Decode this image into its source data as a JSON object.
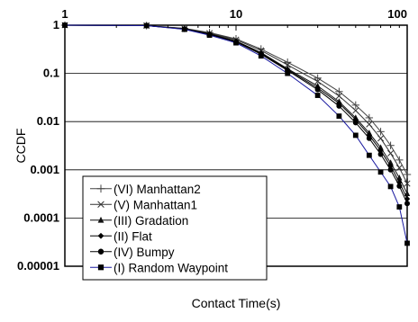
{
  "chart_data": {
    "type": "line",
    "xlabel": "Contact Time(s)",
    "ylabel": "CCDF",
    "x_scale": "log",
    "y_scale": "log",
    "xlim": [
      1,
      100
    ],
    "ylim": [
      1e-05,
      1
    ],
    "x_tick_labels": [
      "1",
      "10",
      "100"
    ],
    "y_tick_labels": [
      "1",
      "0.1",
      "0.01",
      "0.001",
      "0.0001",
      "0.00001"
    ],
    "grid": "horizontal major lines",
    "legend_position": "bottom-left",
    "series": [
      {
        "name": "(VI) Manhattan2",
        "marker": "plus",
        "color": "#444444",
        "points": [
          [
            1,
            1
          ],
          [
            3,
            0.98
          ],
          [
            5,
            0.86
          ],
          [
            7,
            0.7
          ],
          [
            10,
            0.52
          ],
          [
            14,
            0.32
          ],
          [
            20,
            0.17
          ],
          [
            30,
            0.08
          ],
          [
            40,
            0.042
          ],
          [
            50,
            0.022
          ],
          [
            60,
            0.012
          ],
          [
            70,
            0.0062
          ],
          [
            80,
            0.0032
          ],
          [
            90,
            0.0016
          ],
          [
            100,
            0.0008
          ]
        ]
      },
      {
        "name": "(V) Manhattan1",
        "marker": "x",
        "color": "#333333",
        "points": [
          [
            1,
            1
          ],
          [
            3,
            0.98
          ],
          [
            5,
            0.85
          ],
          [
            7,
            0.68
          ],
          [
            10,
            0.5
          ],
          [
            14,
            0.3
          ],
          [
            20,
            0.15
          ],
          [
            30,
            0.068
          ],
          [
            40,
            0.034
          ],
          [
            50,
            0.017
          ],
          [
            60,
            0.0088
          ],
          [
            70,
            0.0045
          ],
          [
            80,
            0.0022
          ],
          [
            90,
            0.0011
          ],
          [
            100,
            0.00052
          ]
        ]
      },
      {
        "name": "(III) Gradation",
        "marker": "triangle",
        "color": "#111111",
        "points": [
          [
            1,
            1
          ],
          [
            3,
            0.98
          ],
          [
            5,
            0.84
          ],
          [
            7,
            0.66
          ],
          [
            10,
            0.47
          ],
          [
            14,
            0.27
          ],
          [
            20,
            0.125
          ],
          [
            30,
            0.055
          ],
          [
            40,
            0.026
          ],
          [
            50,
            0.012
          ],
          [
            60,
            0.0058
          ],
          [
            70,
            0.0029
          ],
          [
            80,
            0.0014
          ],
          [
            90,
            0.00068
          ],
          [
            100,
            0.00032
          ]
        ]
      },
      {
        "name": "(II) Flat",
        "marker": "diamond",
        "color": "#000000",
        "points": [
          [
            1,
            1
          ],
          [
            3,
            0.98
          ],
          [
            5,
            0.84
          ],
          [
            7,
            0.65
          ],
          [
            10,
            0.46
          ],
          [
            14,
            0.26
          ],
          [
            20,
            0.12
          ],
          [
            30,
            0.05
          ],
          [
            40,
            0.024
          ],
          [
            50,
            0.011
          ],
          [
            60,
            0.0052
          ],
          [
            70,
            0.0025
          ],
          [
            80,
            0.0012
          ],
          [
            90,
            0.00055
          ],
          [
            100,
            0.00025
          ]
        ]
      },
      {
        "name": "(IV) Bumpy",
        "marker": "circle",
        "color": "#000000",
        "points": [
          [
            1,
            1
          ],
          [
            3,
            0.98
          ],
          [
            5,
            0.83
          ],
          [
            7,
            0.64
          ],
          [
            10,
            0.45
          ],
          [
            14,
            0.25
          ],
          [
            20,
            0.115
          ],
          [
            30,
            0.046
          ],
          [
            40,
            0.021
          ],
          [
            50,
            0.0095
          ],
          [
            60,
            0.0045
          ],
          [
            70,
            0.0021
          ],
          [
            80,
            0.001
          ],
          [
            90,
            0.00046
          ],
          [
            100,
            0.0002
          ]
        ]
      },
      {
        "name": "(I) Random Waypoint",
        "marker": "square",
        "color": "#1a1aa0",
        "points": [
          [
            1,
            1
          ],
          [
            3,
            0.98
          ],
          [
            5,
            0.82
          ],
          [
            7,
            0.62
          ],
          [
            10,
            0.43
          ],
          [
            14,
            0.23
          ],
          [
            20,
            0.1
          ],
          [
            30,
            0.035
          ],
          [
            40,
            0.013
          ],
          [
            50,
            0.0052
          ],
          [
            60,
            0.002
          ],
          [
            70,
            0.0009
          ],
          [
            80,
            0.00045
          ],
          [
            90,
            0.00017
          ],
          [
            100,
            3e-05
          ]
        ]
      }
    ]
  }
}
